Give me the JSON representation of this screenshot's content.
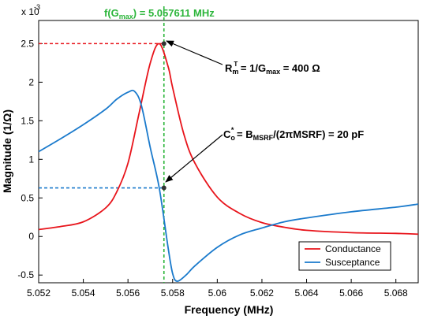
{
  "chart_data": {
    "type": "line",
    "xlabel": "Frequency (MHz)",
    "ylabel": "Magnitude (1/Ω)",
    "y_scale_note": "x 10",
    "y_scale_exp": "-3",
    "xlim": [
      5.052,
      5.069
    ],
    "ylim": [
      -0.6,
      2.8
    ],
    "x_ticks": [
      5.052,
      5.054,
      5.056,
      5.058,
      5.06,
      5.062,
      5.064,
      5.066,
      5.068
    ],
    "x_tick_labels": [
      "5.052",
      "5.054",
      "5.056",
      "5.058",
      "5.06",
      "5.062",
      "5.064",
      "5.066",
      "5.068"
    ],
    "y_ticks": [
      -0.5,
      0,
      0.5,
      1,
      1.5,
      2,
      2.5
    ],
    "y_tick_labels": [
      "-0.5",
      "0",
      "0.5",
      "1",
      "1.5",
      "2",
      "2.5"
    ],
    "grid": false,
    "legend_position": "bottom-right",
    "series": [
      {
        "name": "Conductance",
        "color": "#e8141b",
        "x": [
          5.052,
          5.053,
          5.054,
          5.055,
          5.0555,
          5.056,
          5.0565,
          5.057,
          5.0574,
          5.0578,
          5.058,
          5.0585,
          5.059,
          5.06,
          5.061,
          5.062,
          5.063,
          5.064,
          5.066,
          5.068,
          5.069
        ],
        "values": [
          0.09,
          0.13,
          0.19,
          0.37,
          0.58,
          0.95,
          1.6,
          2.25,
          2.5,
          2.2,
          1.93,
          1.33,
          0.95,
          0.51,
          0.3,
          0.18,
          0.12,
          0.08,
          0.05,
          0.04,
          0.03
        ]
      },
      {
        "name": "Susceptance",
        "color": "#1a7acc",
        "x": [
          5.052,
          5.053,
          5.054,
          5.055,
          5.0555,
          5.056,
          5.0563,
          5.0566,
          5.057,
          5.0574,
          5.0578,
          5.058,
          5.0582,
          5.0586,
          5.059,
          5.06,
          5.061,
          5.062,
          5.063,
          5.064,
          5.066,
          5.068,
          5.069
        ],
        "values": [
          1.1,
          1.27,
          1.45,
          1.65,
          1.78,
          1.87,
          1.88,
          1.7,
          1.15,
          0.63,
          -0.15,
          -0.48,
          -0.58,
          -0.5,
          -0.38,
          -0.14,
          0.02,
          0.11,
          0.19,
          0.24,
          0.32,
          0.38,
          0.42
        ]
      }
    ],
    "reference_lines": {
      "fmax_x": 5.057611,
      "gmax_y": 2.5,
      "cap_y": 0.63
    },
    "annotations": {
      "fmax_label": "f(G",
      "fmax_sub": "max",
      "fmax_value": ") =  5.057611 MHz",
      "rm_prefix": "R",
      "rm_sub": "m",
      "rm_sup": "T",
      "rm_mid": " = 1/G",
      "rm_sub2": "max",
      "rm_value": " = 400 Ω",
      "co_prefix": "C",
      "co_sub": "o",
      "co_sup": "*",
      "co_mid": " = B",
      "co_sub2": "MSRF",
      "co_value": "/(2πMSRF) = 20 pF"
    }
  }
}
